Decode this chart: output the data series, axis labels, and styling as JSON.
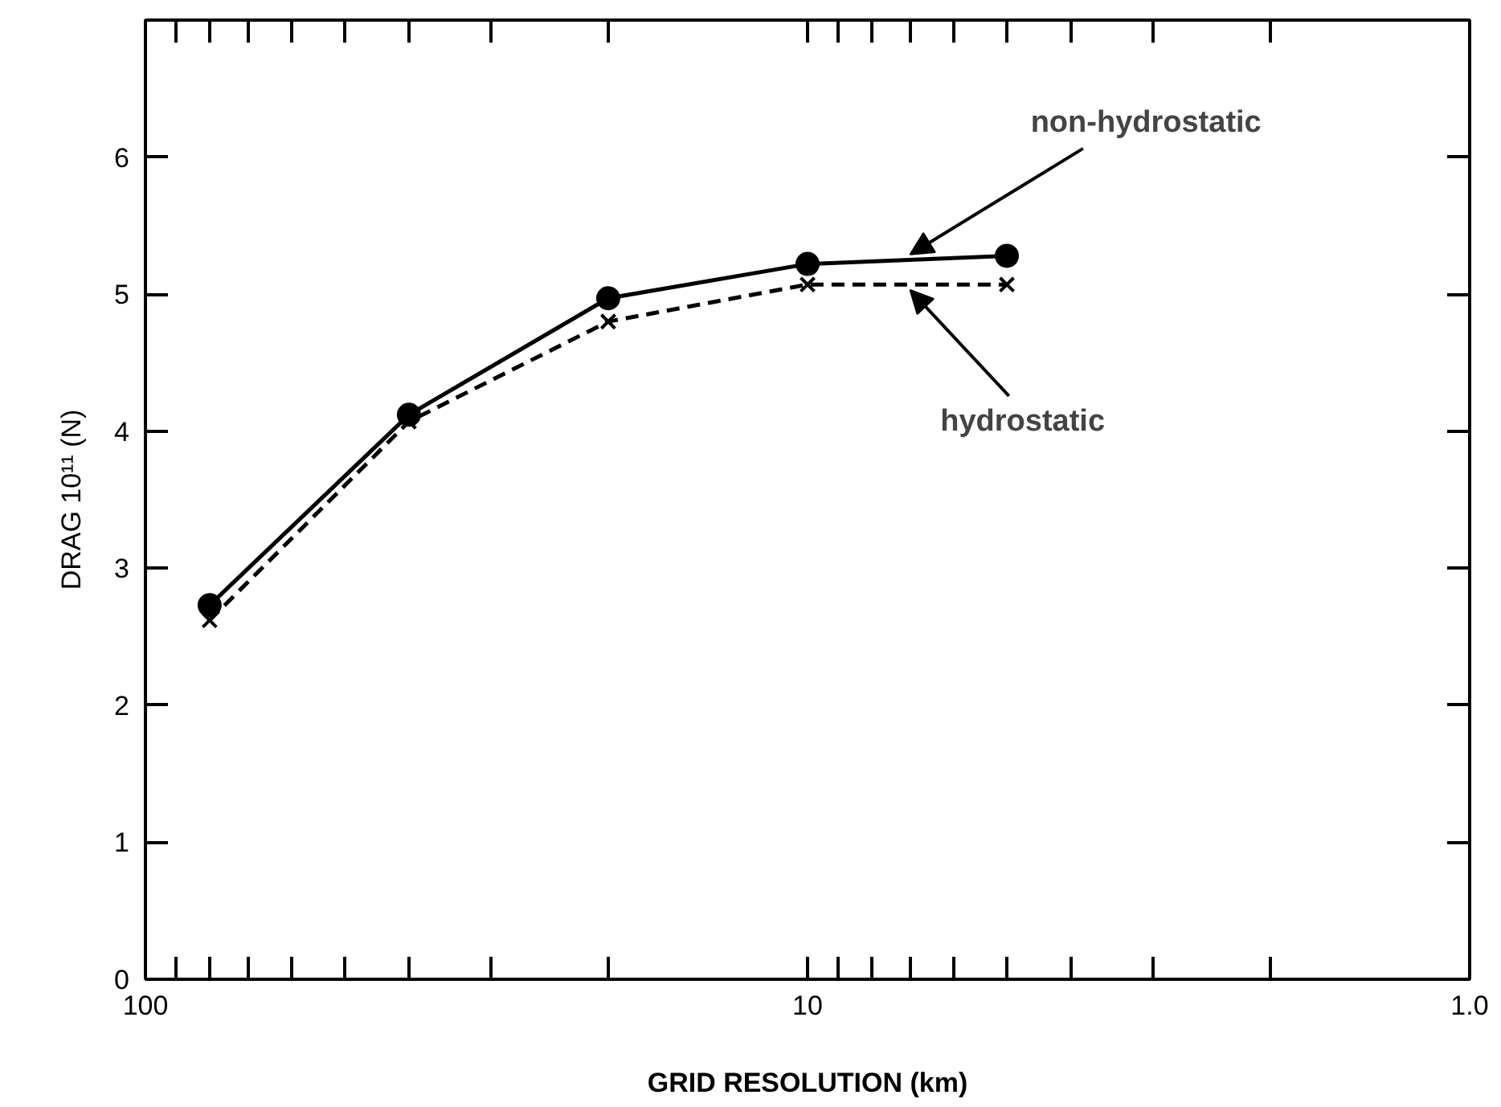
{
  "chart_data": {
    "type": "line",
    "xlabel": "GRID RESOLUTION (km)",
    "ylabel": "DRAG 10¹¹ (N)",
    "log": "x",
    "grid": false,
    "x": [
      80,
      40,
      20,
      10,
      5
    ],
    "series": [
      {
        "color": "#000000",
        "marker": "circle",
        "line_style": "solid",
        "values": [
          2.73,
          4.12,
          4.97,
          5.22,
          5.28
        ]
      },
      {
        "color": "#000000",
        "marker": "cross",
        "line_style": "dashed",
        "values": [
          2.62,
          4.07,
          4.8,
          5.07,
          5.07
        ]
      }
    ],
    "xlim": [
      100,
      1
    ],
    "xticks": [
      100,
      {
        "value": 90,
        "label": null
      },
      {
        "value": 80,
        "label": null
      },
      {
        "value": 70,
        "label": null
      },
      {
        "value": 60,
        "label": null
      },
      {
        "value": 50,
        "label": null
      },
      {
        "value": 40,
        "label": null
      },
      {
        "value": 30,
        "label": null
      },
      {
        "value": 20,
        "label": null
      },
      10,
      {
        "value": 9,
        "label": null
      },
      {
        "value": 8,
        "label": null
      },
      {
        "value": 7,
        "label": null
      },
      {
        "value": 6,
        "label": null
      },
      {
        "value": 5,
        "label": null
      },
      {
        "value": 4,
        "label": null
      },
      {
        "value": 3,
        "label": null
      },
      {
        "value": 2,
        "label": null
      },
      {
        "value": 1,
        "label": "1.0"
      }
    ],
    "ylim": [
      0,
      7
    ],
    "yticks": [
      0,
      1,
      2,
      3,
      4,
      5,
      6
    ],
    "annotations": [
      {
        "text": "non-hydrostatic",
        "x": 7,
        "y": 5.25
      },
      {
        "text": "hydrostatic",
        "x": 7,
        "y": 5.07
      }
    ]
  }
}
